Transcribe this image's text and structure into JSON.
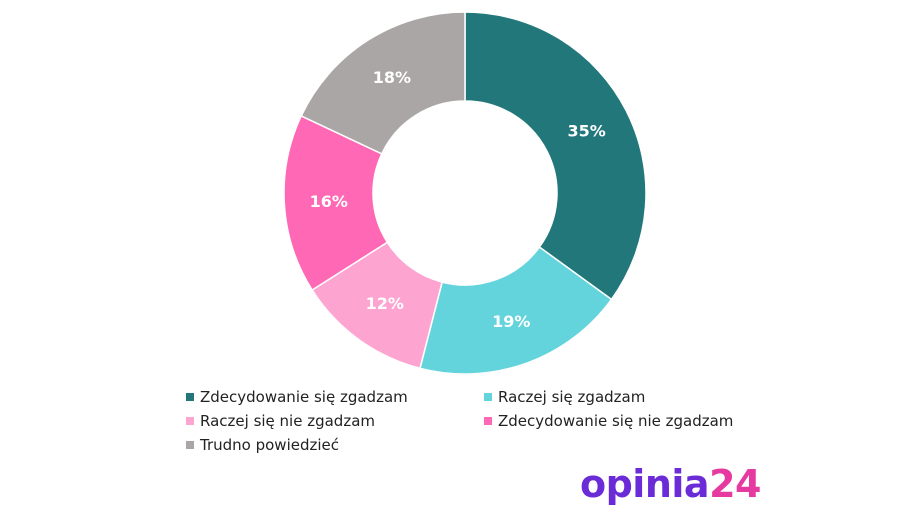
{
  "chart_data": {
    "type": "pie",
    "donut": true,
    "legend_position": "bottom",
    "slices": [
      {
        "label": "Zdecydowanie się zgadzam",
        "value": 35,
        "value_label": "35%",
        "color": "#21777a"
      },
      {
        "label": "Raczej się zgadzam",
        "value": 19,
        "value_label": "19%",
        "color": "#63d3dc"
      },
      {
        "label": "Raczej się nie zgadzam",
        "value": 12,
        "value_label": "12%",
        "color": "#fda4d1"
      },
      {
        "label": "Zdecydowanie się nie zgadzam",
        "value": 16,
        "value_label": "16%",
        "color": "#fe68b4"
      },
      {
        "label": "Trudno powiedzieć",
        "value": 18,
        "value_label": "18%",
        "color": "#aba6a6"
      }
    ]
  },
  "logo": {
    "word": "opinia",
    "number": "24",
    "colors": {
      "word": "#6b2bd6",
      "number": "#e63aa0"
    }
  }
}
